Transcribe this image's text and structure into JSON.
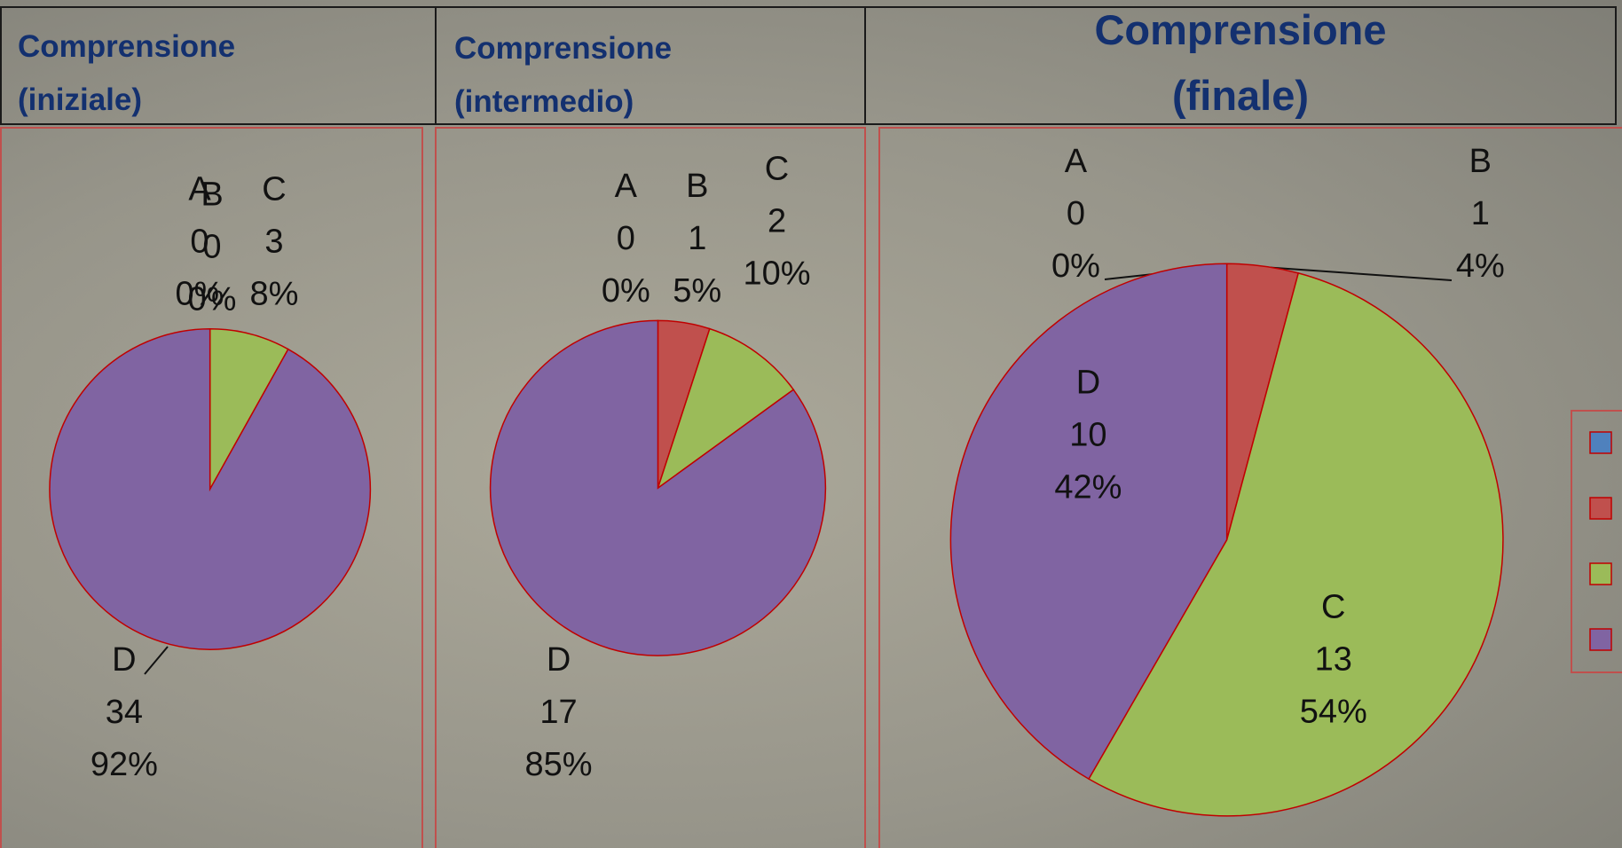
{
  "chart_data": [
    {
      "type": "pie",
      "title": "Comprensione (iniziale)",
      "categories": [
        "A",
        "B",
        "C",
        "D"
      ],
      "values": [
        0,
        0,
        3,
        34
      ],
      "percent_labels": [
        "0%",
        "0%",
        "8%",
        "92%"
      ],
      "colors": [
        "#4f81bd",
        "#c0504d",
        "#9bbb59",
        "#8064a2"
      ]
    },
    {
      "type": "pie",
      "title": "Comprensione (intermedio)",
      "categories": [
        "A",
        "B",
        "C",
        "D"
      ],
      "values": [
        0,
        1,
        2,
        17
      ],
      "percent_labels": [
        "0%",
        "5%",
        "10%",
        "85%"
      ],
      "colors": [
        "#4f81bd",
        "#c0504d",
        "#9bbb59",
        "#8064a2"
      ]
    },
    {
      "type": "pie",
      "title": "Comprensione (finale)",
      "categories": [
        "A",
        "B",
        "C",
        "D"
      ],
      "values": [
        0,
        1,
        13,
        10
      ],
      "percent_labels": [
        "0%",
        "4%",
        "54%",
        "42%"
      ],
      "colors": [
        "#4f81bd",
        "#c0504d",
        "#9bbb59",
        "#8064a2"
      ]
    }
  ]
}
